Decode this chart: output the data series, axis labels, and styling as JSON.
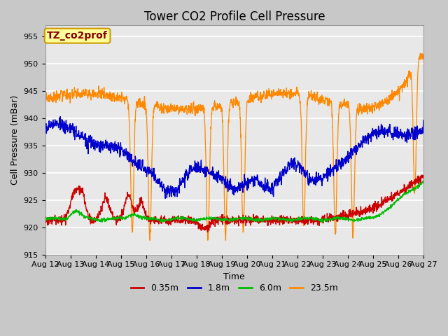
{
  "title": "Tower CO2 Profile Cell Pressure",
  "ylabel": "Cell Pressure (mBar)",
  "xlabel": "Time",
  "annotation": "TZ_co2prof",
  "ylim": [
    915,
    957
  ],
  "yticks": [
    915,
    920,
    925,
    930,
    935,
    940,
    945,
    950,
    955
  ],
  "x_labels": [
    "Aug 12",
    "Aug 13",
    "Aug 14",
    "Aug 15",
    "Aug 16",
    "Aug 17",
    "Aug 18",
    "Aug 19",
    "Aug 20",
    "Aug 21",
    "Aug 22",
    "Aug 23",
    "Aug 24",
    "Aug 25",
    "Aug 26",
    "Aug 27"
  ],
  "series_labels": [
    "0.35m",
    "1.8m",
    "6.0m",
    "23.5m"
  ],
  "series_colors": [
    "#cc0000",
    "#0000cc",
    "#00bb00",
    "#ff8800"
  ],
  "fig_facecolor": "#c8c8c8",
  "plot_bg_color": "#e8e8e8",
  "title_fontsize": 12,
  "axis_label_fontsize": 9,
  "tick_fontsize": 8,
  "annotation_fontsize": 10,
  "annotation_bg": "#ffff99",
  "annotation_border": "#cc9900",
  "annotation_text_color": "#880000",
  "num_points": 1500
}
